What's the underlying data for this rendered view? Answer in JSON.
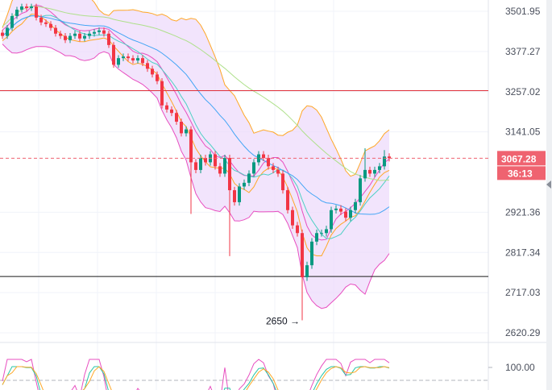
{
  "chart_data": {
    "type": "candlestick",
    "title": "",
    "scale": "log",
    "y_ticks": [
      "3501.95",
      "3377.27",
      "3257.02",
      "3141.05",
      "2921.36",
      "2817.34",
      "2717.03",
      "2620.29"
    ],
    "ylim": [
      2620.29,
      3501.95
    ],
    "closes": [
      3425,
      3450,
      3487,
      3507,
      3517,
      3512,
      3517,
      3482,
      3467,
      3462,
      3450,
      3432,
      3425,
      3412,
      3425,
      3432,
      3417,
      3425,
      3432,
      3437,
      3442,
      3432,
      3397,
      3337,
      3357,
      3362,
      3357,
      3350,
      3357,
      3342,
      3325,
      3308,
      3288,
      3217,
      3205,
      3195,
      3170,
      3137,
      3148,
      3056,
      3035,
      3068,
      3056,
      3078,
      3045,
      3025,
      3068,
      2980,
      2948,
      2990,
      3000,
      3025,
      3056,
      3078,
      3068,
      3045,
      3035,
      3025,
      2980,
      2927,
      2887,
      2867,
      2755,
      2785,
      2845,
      2867,
      2867,
      2877,
      2927,
      2931,
      2923,
      2907,
      2927,
      2948,
      3012,
      3035,
      3025,
      3035,
      3045,
      3072,
      3067.28
    ],
    "wick_lows": {
      "39": 2917,
      "47": 2808,
      "62": 2650
    },
    "wick_highs": {
      "75": 3095,
      "79": 3090
    },
    "horizontal_lines": [
      {
        "price": 3260,
        "color": "#e0303a"
      },
      {
        "price": 2757,
        "color": "#1a1a1a"
      }
    ],
    "current_price": {
      "value": "3067.28",
      "countdown": "36:13",
      "color": "#ef6370"
    },
    "annotation": {
      "text": "2650 →",
      "price": 2650
    },
    "colors": {
      "up": "#089981",
      "down": "#f23645",
      "band_fill": "#ecd9fb",
      "band_line": "#e84fc0",
      "ma_fast": "#ffa726",
      "ma_mid": "#4dd0c4",
      "ma_slow": "#42a5f5",
      "ma_long": "#aee08a"
    },
    "oscillator": {
      "label": "100.00"
    }
  }
}
